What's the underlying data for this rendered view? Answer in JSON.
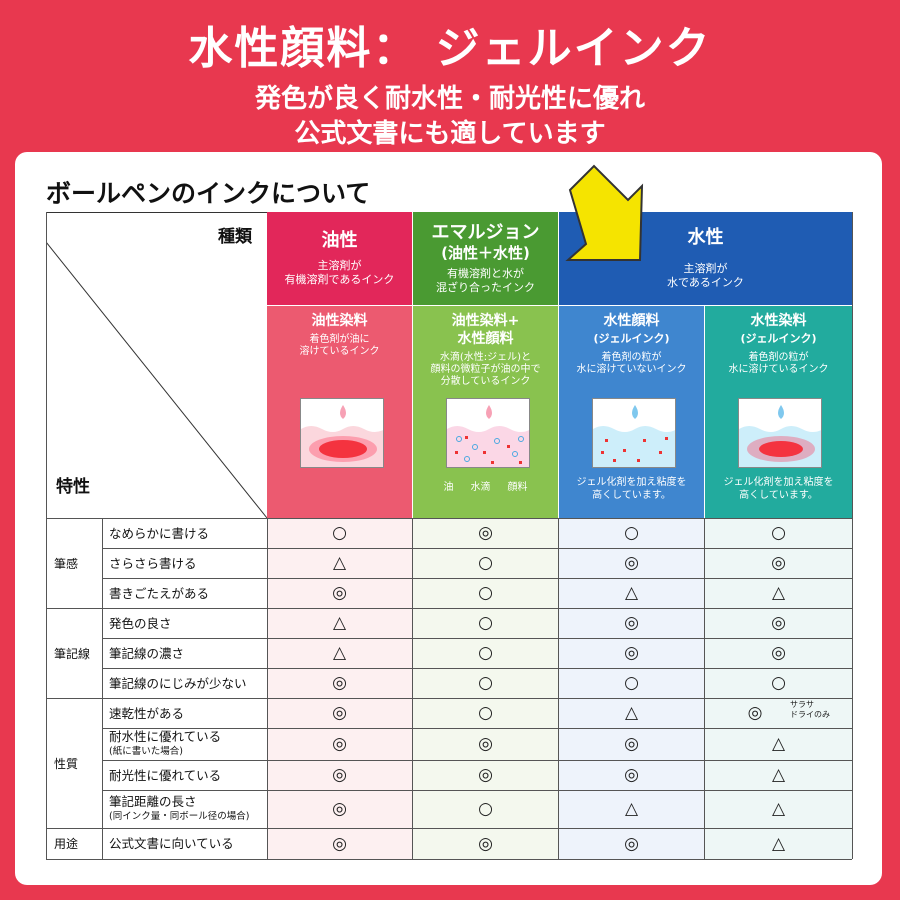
{
  "hero": {
    "title": "水性顔料： ジェルインク",
    "subtitle_line1": "発色が良く耐水性・耐光性に優れ",
    "subtitle_line2": "公式文書にも適しています"
  },
  "section_title": "ボールペンのインクについて",
  "header": {
    "kind_label": "種類",
    "trait_label": "特性",
    "top": [
      {
        "name": "油性",
        "desc": [
          "主溶剤が",
          "有機溶剤であるインク"
        ]
      },
      {
        "name_line1": "エマルジョン",
        "name_line2": "(油性＋水性)",
        "desc": [
          "有機溶剤と水が",
          "混ざり合ったインク"
        ]
      },
      {
        "name": "水性",
        "desc": [
          "主溶剤が",
          "水であるインク"
        ]
      }
    ],
    "sub": [
      {
        "name_line1": "油性染料",
        "desc": [
          "着色剤が油に",
          "溶けているインク"
        ],
        "note": []
      },
      {
        "name_line1": "油性染料+",
        "name_line2": "水性顔料",
        "desc": [
          "水滴(水性:ジェル)と",
          "顔料の微粒子が油の中で",
          "分散しているインク"
        ],
        "legend": [
          "油",
          "水滴",
          "顔料"
        ]
      },
      {
        "name_line1": "水性顔料",
        "name_line2": "(ジェルインク)",
        "desc": [
          "着色剤の粒が",
          "水に溶けていないインク"
        ],
        "note": [
          "ジェル化剤を加え粘度を",
          "高くしています。"
        ]
      },
      {
        "name_line1": "水性染料",
        "name_line2": "(ジェルインク)",
        "desc": [
          "着色剤の粒が",
          "水に溶けているインク"
        ],
        "note": [
          "ジェル化剤を加え粘度を",
          "高くしています。"
        ]
      }
    ]
  },
  "table": {
    "categories": [
      {
        "label": "筆感"
      },
      {
        "label": "筆記線"
      },
      {
        "label": "性質"
      },
      {
        "label": "用途"
      }
    ],
    "rows": [
      {
        "label": "なめらかに書ける",
        "small": "",
        "marks": [
          "○",
          "◎",
          "○",
          "○"
        ]
      },
      {
        "label": "さらさら書ける",
        "small": "",
        "marks": [
          "△",
          "○",
          "◎",
          "◎"
        ]
      },
      {
        "label": "書きごたえがある",
        "small": "",
        "marks": [
          "◎",
          "○",
          "△",
          "△"
        ]
      },
      {
        "label": "発色の良さ",
        "small": "",
        "marks": [
          "△",
          "○",
          "◎",
          "◎"
        ]
      },
      {
        "label": "筆記線の濃さ",
        "small": "",
        "marks": [
          "△",
          "○",
          "◎",
          "◎"
        ]
      },
      {
        "label": "筆記線のにじみが少ない",
        "small": "",
        "marks": [
          "◎",
          "○",
          "○",
          "○"
        ]
      },
      {
        "label": "速乾性がある",
        "small": "",
        "marks": [
          "◎",
          "○",
          "△",
          "◎"
        ]
      },
      {
        "label": "耐水性に優れている",
        "small": "(紙に書いた場合)",
        "marks": [
          "◎",
          "◎",
          "◎",
          "△"
        ]
      },
      {
        "label": "耐光性に優れている",
        "small": "",
        "marks": [
          "◎",
          "◎",
          "◎",
          "△"
        ]
      },
      {
        "label": "筆記距離の長さ",
        "small": "(同インク量・同ボール径の場合)",
        "marks": [
          "◎",
          "○",
          "△",
          "△"
        ]
      },
      {
        "label": "公式文書に向いている",
        "small": "",
        "marks": [
          "◎",
          "◎",
          "◎",
          "△"
        ]
      }
    ],
    "note_dye_quickdry": [
      "サラサ",
      "ドライのみ"
    ]
  },
  "colors": {
    "background": "#e8384f",
    "oil": "#e2275a",
    "emulsion": "#4a9a32",
    "water": "#1f5cb3",
    "water_dye": "#22ab9e",
    "arrow": "#f5e400"
  }
}
